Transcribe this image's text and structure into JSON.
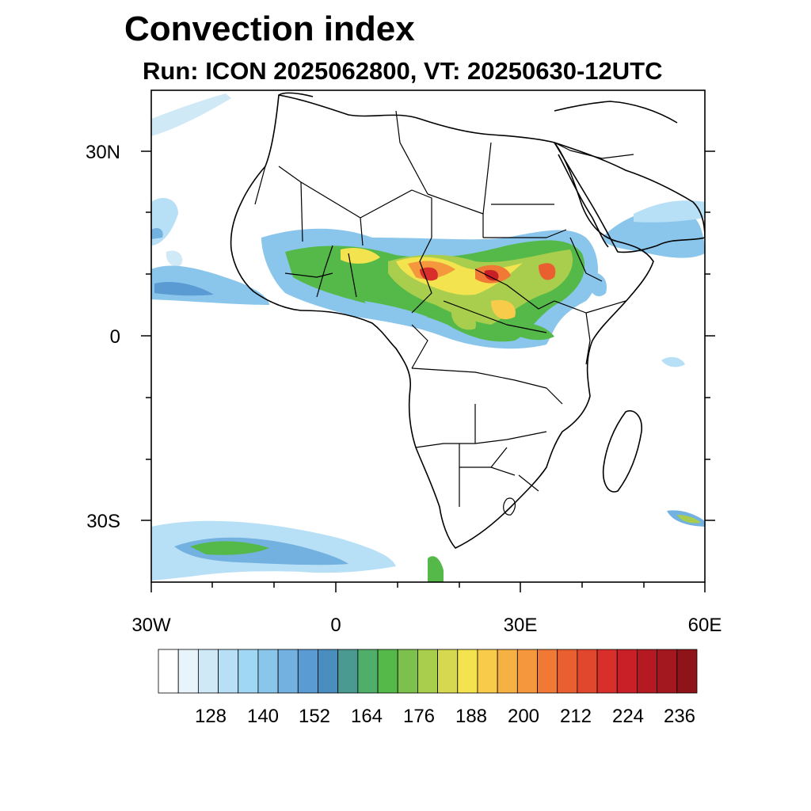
{
  "title": "Convection index",
  "subtitle": "Run: ICON 2025062800,  VT: 20250630-12UTC",
  "map": {
    "region": "Africa",
    "lat_labels": [
      "30N",
      "0",
      "30S"
    ],
    "lon_labels": [
      "30W",
      "0",
      "30E",
      "60E"
    ]
  },
  "colorbar": {
    "labels": [
      "128",
      "140",
      "152",
      "164",
      "176",
      "188",
      "200",
      "212",
      "224",
      "236"
    ],
    "colors": [
      "#ffffff",
      "#e8f4fb",
      "#cfe9f7",
      "#b7e0f6",
      "#9fd7f4",
      "#8ac6ec",
      "#73b1e1",
      "#5b9bd3",
      "#4a8dbf",
      "#4a9a92",
      "#4fae6a",
      "#55b94a",
      "#7bc14b",
      "#a9ce4d",
      "#d6d94f",
      "#f2e34f",
      "#f8cb4b",
      "#f6b145",
      "#f4973d",
      "#f07a35",
      "#ea5f2f",
      "#e1472c",
      "#d82f2b",
      "#c92027",
      "#b51a23",
      "#a3171f",
      "#8e141a"
    ]
  }
}
